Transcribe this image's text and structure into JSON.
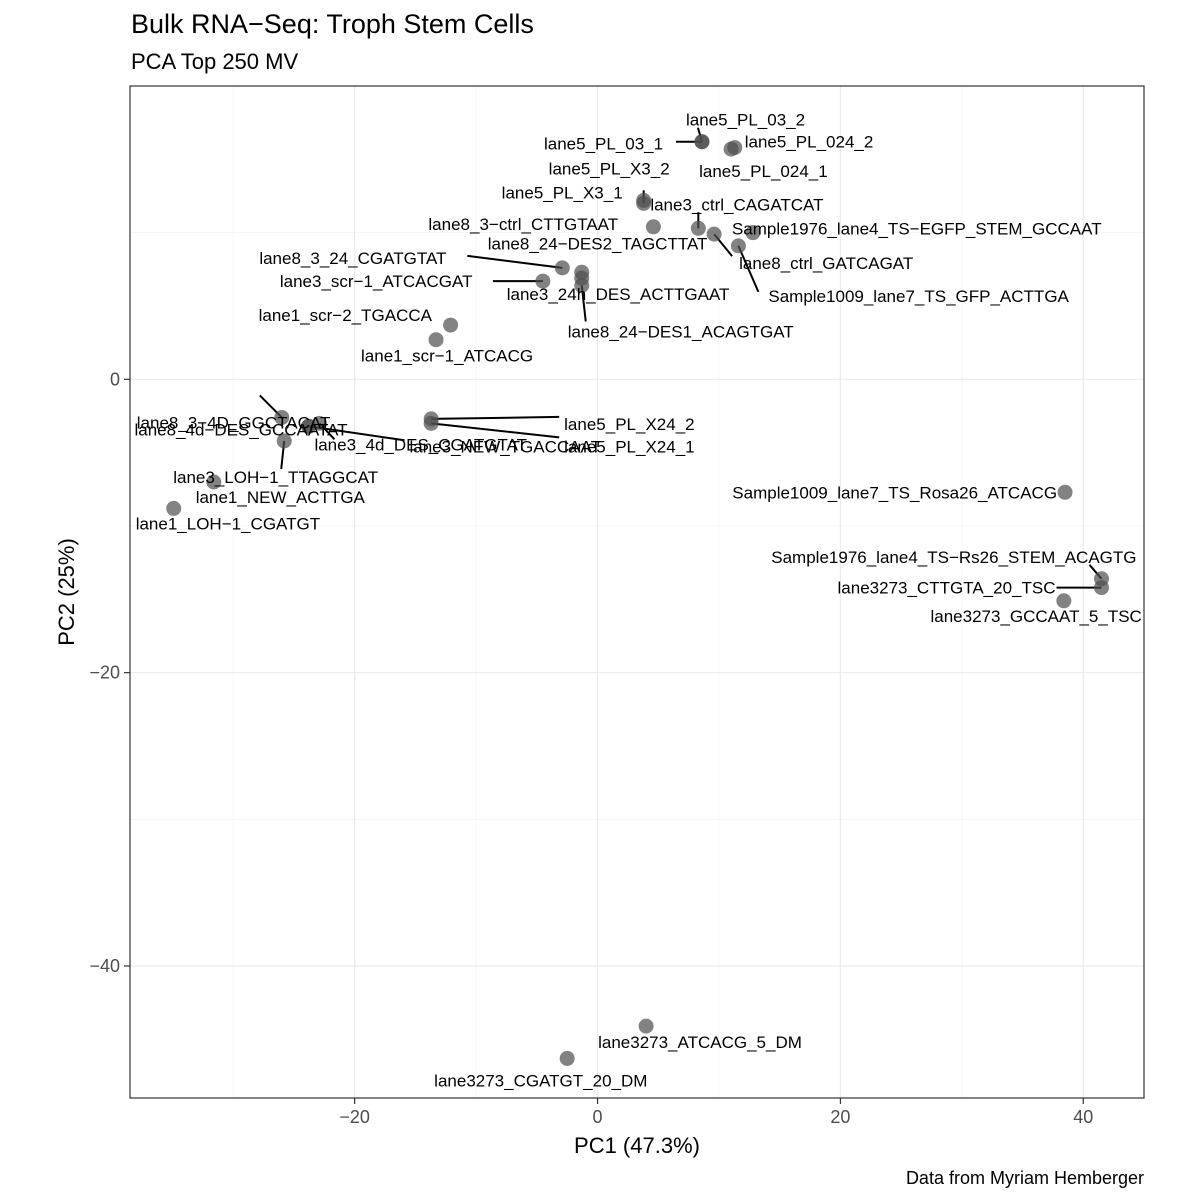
{
  "chart_data": {
    "type": "scatter",
    "title": "Bulk RNA−Seq: Troph Stem Cells",
    "subtitle": "PCA Top 250 MV",
    "caption": "Data from Myriam Hemberger",
    "xlabel": "PC1 (47.3%)",
    "ylabel": "PC2 (25%)",
    "xlim": [
      -38.5,
      45
    ],
    "ylim": [
      -49,
      20
    ],
    "x_ticks": [
      -20,
      0,
      20,
      40
    ],
    "y_ticks": [
      -40,
      -20,
      0
    ],
    "x_tick_labels": [
      "−20",
      "0",
      "20",
      "40"
    ],
    "y_tick_labels": [
      "−40",
      "−20",
      "0"
    ],
    "grid": true,
    "legend": "none",
    "points": [
      {
        "label": "lane5_PL_03_2",
        "x": 8.6,
        "y": 16.2
      },
      {
        "label": "lane5_PL_03_1",
        "x": 8.6,
        "y": 16.2
      },
      {
        "label": "lane5_PL_024_2",
        "x": 11.3,
        "y": 15.8
      },
      {
        "label": "lane5_PL_024_1",
        "x": 11.0,
        "y": 15.7
      },
      {
        "label": "lane5_PL_X3_2",
        "x": 3.8,
        "y": 12.0
      },
      {
        "label": "lane5_PL_X3_1",
        "x": 3.8,
        "y": 12.2
      },
      {
        "label": "lane3_ctrl_CAGATCAT",
        "x": 8.3,
        "y": 10.3
      },
      {
        "label": "lane8_3−ctrl_CTTGTAAT",
        "x": 4.6,
        "y": 10.4
      },
      {
        "label": "Sample1976_lane4_TS−EGFP_STEM_GCCAAT",
        "x": 12.8,
        "y": 10.0
      },
      {
        "label": "lane8_ctrl_GATCAGAT",
        "x": 9.6,
        "y": 9.9
      },
      {
        "label": "Sample1009_lane7_TS_GFP_ACTTGA",
        "x": 11.6,
        "y": 9.1
      },
      {
        "label": "lane8_3_24_CGATGTAT",
        "x": -2.9,
        "y": 7.6
      },
      {
        "label": "lane8_24−DES2_TAGCTTAT",
        "x": -1.3,
        "y": 7.3
      },
      {
        "label": "lane3_scr−1_ATCACGAT",
        "x": -4.5,
        "y": 6.7
      },
      {
        "label": "lane3_24h_DES_ACTTGAAT",
        "x": -1.3,
        "y": 6.9
      },
      {
        "label": "lane8_24−DES1_ACAGTGAT",
        "x": -1.3,
        "y": 6.4
      },
      {
        "label": "lane1_scr−2_TGACCA",
        "x": -12.1,
        "y": 3.7
      },
      {
        "label": "lane1_scr−1_ATCACG",
        "x": -13.3,
        "y": 2.7
      },
      {
        "label": "lane8_3−4D_GGCTACAT",
        "x": -26.0,
        "y": -2.6
      },
      {
        "label": "lane3_4d_DES_CGATGTAT",
        "x": -22.9,
        "y": -3.0
      },
      {
        "label": "lane5_PL_X24_2",
        "x": -13.7,
        "y": -2.7
      },
      {
        "label": "lane5_PL_X24_1",
        "x": -13.7,
        "y": -3.0
      },
      {
        "label": "lane8_4d−DES_GCCAATAT",
        "x": -23.8,
        "y": -3.2
      },
      {
        "label": "lane3_NEW_TGACCAAT",
        "x": -23.8,
        "y": -3.2
      },
      {
        "label": "lane3_LOH−1_TTAGGCAT",
        "x": -25.8,
        "y": -4.2
      },
      {
        "label": "lane1_NEW_ACTTGA",
        "x": -31.6,
        "y": -7.0
      },
      {
        "label": "lane1_LOH−1_CGATGT",
        "x": -34.9,
        "y": -8.8
      },
      {
        "label": "Sample1009_lane7_TS_Rosa26_ATCACG",
        "x": 38.5,
        "y": -7.7
      },
      {
        "label": "Sample1976_lane4_TS−Rs26_STEM_ACAGTG",
        "x": 41.5,
        "y": -13.6
      },
      {
        "label": "lane3273_CTTGTA_20_TSC",
        "x": 41.5,
        "y": -14.2
      },
      {
        "label": "lane3273_GCCAAT_5_TSC",
        "x": 38.4,
        "y": -15.1
      },
      {
        "label": "lane3273_ATCACG_5_DM",
        "x": 4.0,
        "y": -44.1
      },
      {
        "label": "lane3273_CGATGT_20_DM",
        "x": -2.5,
        "y": -46.3
      }
    ]
  }
}
